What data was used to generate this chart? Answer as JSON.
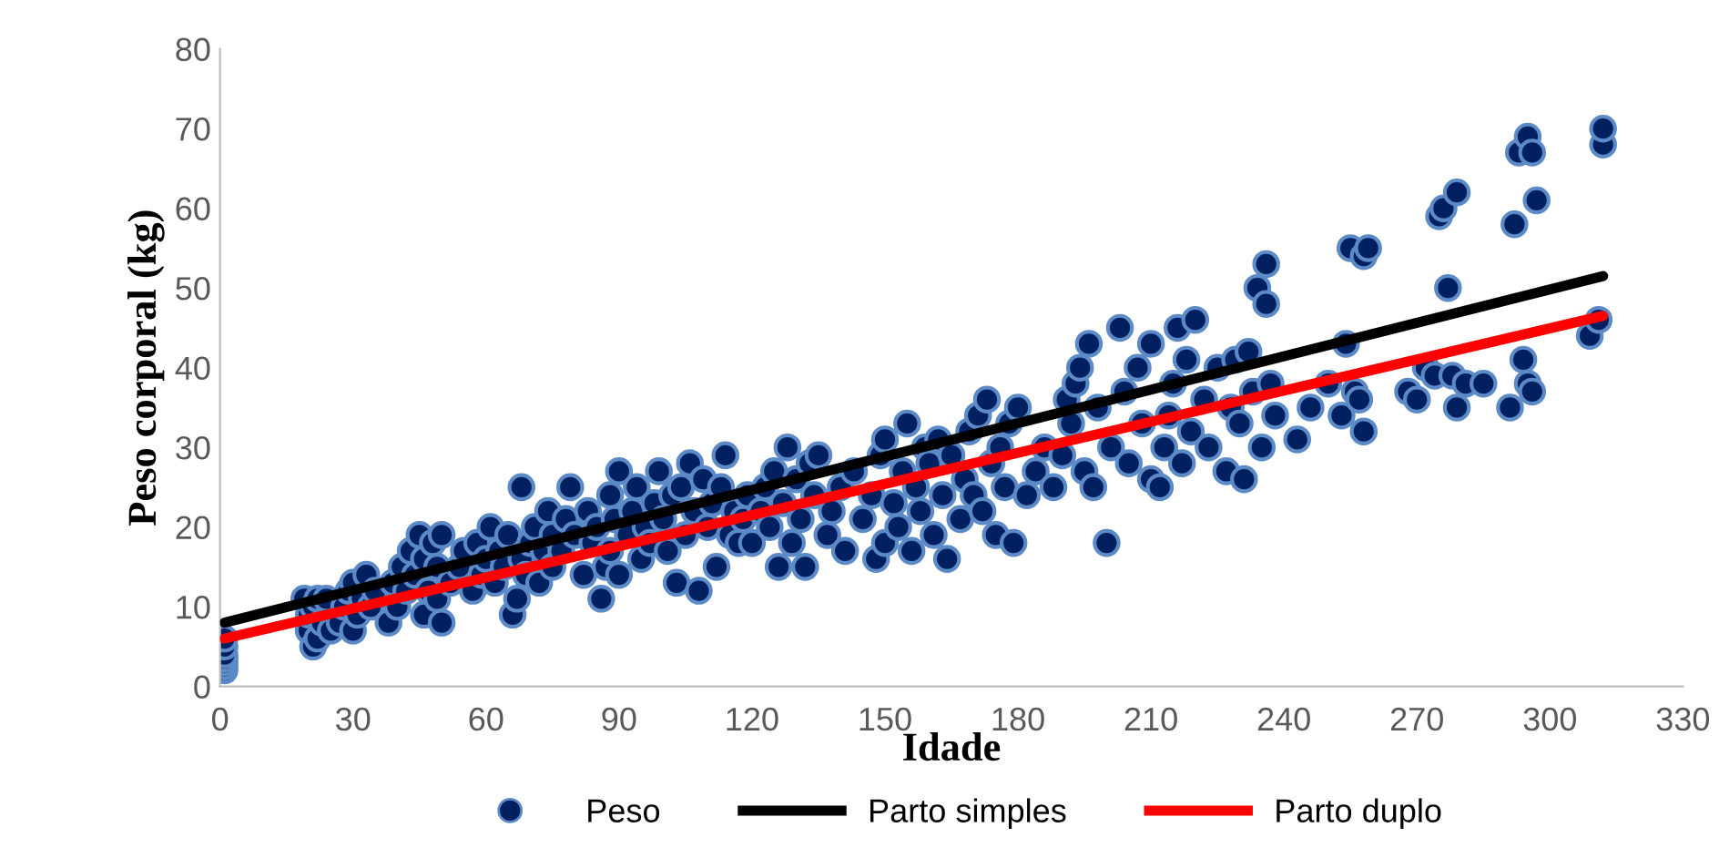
{
  "chart_data": {
    "type": "scatter",
    "xlabel": "Idade",
    "ylabel": "Peso corporal (kg)",
    "xlim": [
      0,
      330
    ],
    "xticks": [
      0,
      30,
      60,
      90,
      120,
      150,
      180,
      210,
      240,
      270,
      300,
      330
    ],
    "ylim": [
      0,
      80
    ],
    "yticks": [
      0,
      10,
      20,
      30,
      40,
      50,
      60,
      70,
      80
    ],
    "grid": false,
    "legend": "bottom",
    "series": [
      {
        "name": "Peso",
        "color": "#002060",
        "marker": "circle",
        "x": [
          1,
          1,
          1,
          1,
          1,
          1,
          1,
          19,
          20,
          20,
          21,
          21,
          22,
          22,
          23,
          24,
          25,
          27,
          28,
          29,
          30,
          30,
          31,
          32,
          33,
          34,
          35,
          38,
          39,
          40,
          41,
          42,
          43,
          44,
          45,
          46,
          46,
          47,
          48,
          49,
          49,
          50,
          50,
          52,
          54,
          55,
          57,
          58,
          59,
          60,
          61,
          62,
          63,
          64,
          65,
          66,
          67,
          68,
          68,
          69,
          70,
          71,
          72,
          73,
          74,
          75,
          75,
          77,
          78,
          79,
          80,
          82,
          83,
          84,
          85,
          86,
          87,
          88,
          88,
          89,
          90,
          90,
          92,
          93,
          94,
          95,
          96,
          97,
          98,
          99,
          100,
          101,
          102,
          103,
          104,
          105,
          106,
          107,
          108,
          109,
          110,
          111,
          112,
          113,
          114,
          115,
          116,
          117,
          118,
          119,
          120,
          122,
          123,
          124,
          125,
          126,
          127,
          128,
          129,
          130,
          131,
          132,
          133,
          134,
          135,
          137,
          138,
          140,
          141,
          143,
          145,
          147,
          148,
          149,
          150,
          150,
          152,
          153,
          154,
          155,
          156,
          157,
          158,
          159,
          160,
          161,
          162,
          163,
          164,
          165,
          167,
          168,
          169,
          170,
          171,
          172,
          173,
          174,
          175,
          176,
          177,
          178,
          179,
          180,
          182,
          184,
          186,
          188,
          190,
          191,
          192,
          193,
          194,
          195,
          196,
          197,
          198,
          200,
          201,
          203,
          204,
          205,
          207,
          208,
          210,
          210,
          212,
          213,
          214,
          215,
          216,
          217,
          218,
          219,
          220,
          222,
          223,
          225,
          227,
          228,
          229,
          230,
          231,
          232,
          233,
          234,
          235,
          236,
          236,
          237,
          238,
          243,
          246,
          250,
          253,
          254,
          255,
          256,
          257,
          258,
          258,
          259,
          268,
          270,
          272,
          274,
          275,
          276,
          277,
          278,
          279,
          279,
          281,
          285,
          291,
          292,
          293,
          294,
          295,
          295,
          296,
          296,
          297,
          309,
          311,
          312,
          312
        ],
        "values": [
          2,
          2.5,
          3,
          3.5,
          4,
          5,
          6,
          11,
          7,
          9,
          5,
          10,
          6,
          11,
          8,
          11,
          7,
          8,
          10,
          12,
          7,
          13,
          9,
          11,
          14,
          10,
          12,
          8,
          13,
          10,
          15,
          12,
          17,
          14,
          19,
          9,
          16,
          12,
          18,
          11,
          15,
          8,
          19,
          13,
          15,
          17,
          12,
          18,
          14,
          16,
          20,
          13,
          17,
          15,
          19,
          9,
          11,
          16,
          25,
          14,
          18,
          20,
          13,
          17,
          22,
          15,
          19,
          17,
          21,
          25,
          19,
          14,
          22,
          18,
          20,
          11,
          15,
          24,
          17,
          21,
          27,
          14,
          19,
          22,
          25,
          16,
          20,
          18,
          23,
          27,
          21,
          17,
          24,
          13,
          25,
          19,
          28,
          22,
          12,
          26,
          20,
          23,
          15,
          25,
          29,
          19,
          22,
          18,
          21,
          24,
          18,
          22,
          25,
          20,
          27,
          15,
          23,
          30,
          18,
          26,
          21,
          15,
          28,
          24,
          29,
          19,
          22,
          25,
          17,
          27,
          21,
          24,
          16,
          29,
          31,
          18,
          23,
          20,
          27,
          33,
          17,
          25,
          22,
          30,
          28,
          19,
          31,
          24,
          16,
          29,
          21,
          26,
          32,
          24,
          34,
          22,
          36,
          28,
          19,
          30,
          25,
          33,
          18,
          35,
          24,
          27,
          30,
          25,
          29,
          36,
          33,
          38,
          40,
          27,
          43,
          25,
          35,
          18,
          30,
          45,
          37,
          28,
          40,
          33,
          26,
          43,
          25,
          30,
          34,
          38,
          45,
          28,
          41,
          32,
          46,
          36,
          30,
          40,
          27,
          35,
          41,
          33,
          26,
          42,
          37,
          50,
          30,
          53,
          48,
          38,
          34,
          31,
          35,
          38,
          34,
          43,
          55,
          37,
          36,
          32,
          54,
          55,
          37,
          36,
          40,
          39,
          59,
          60,
          50,
          39,
          62,
          35,
          38,
          38,
          35,
          58,
          67,
          41,
          38,
          69,
          37,
          67,
          61,
          44,
          46,
          68,
          70
        ]
      },
      {
        "name": "Parto simples",
        "type": "line",
        "color": "#000000",
        "x": [
          1,
          312
        ],
        "values": [
          8,
          51.5
        ]
      },
      {
        "name": "Parto duplo",
        "type": "line",
        "color": "#ff0000",
        "x": [
          1,
          312
        ],
        "values": [
          6,
          46.5
        ]
      }
    ]
  }
}
